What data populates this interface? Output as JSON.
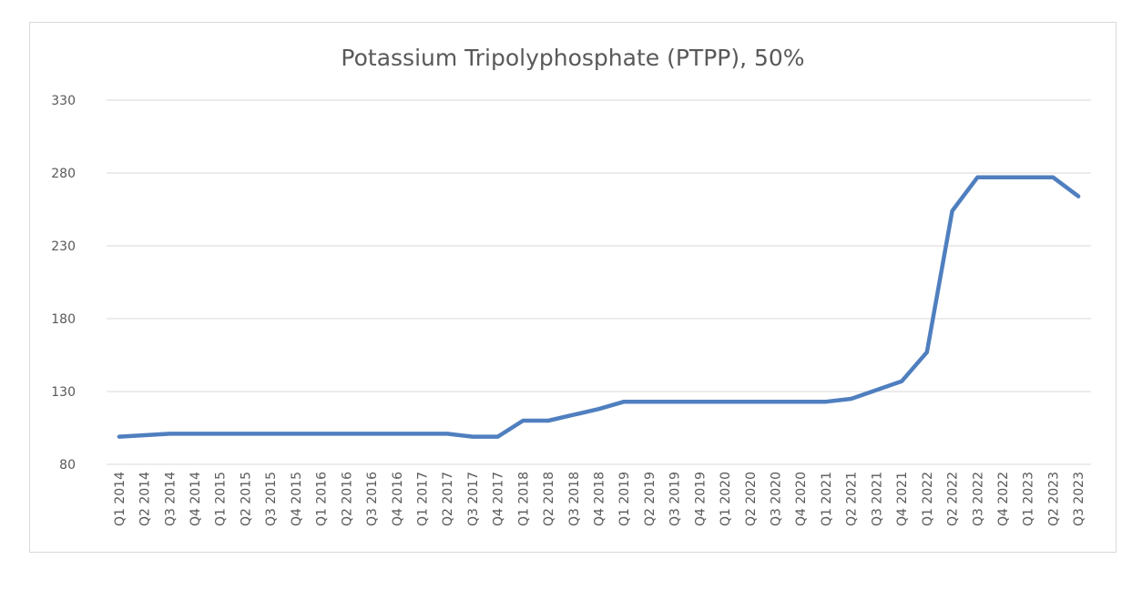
{
  "chart_data": {
    "type": "line",
    "title": "Potassium Tripolyphosphate (PTPP), 50%",
    "xlabel": "",
    "ylabel": "",
    "ylim": [
      80,
      330
    ],
    "yticks": [
      80,
      130,
      180,
      230,
      280,
      330
    ],
    "grid": true,
    "legend": "none",
    "categories": [
      "Q1 2014",
      "Q2 2014",
      "Q3 2014",
      "Q4 2014",
      "Q1 2015",
      "Q2 2015",
      "Q3 2015",
      "Q4 2015",
      "Q1 2016",
      "Q2 2016",
      "Q3 2016",
      "Q4 2016",
      "Q1 2017",
      "Q2 2017",
      "Q3 2017",
      "Q4 2017",
      "Q1 2018",
      "Q2 2018",
      "Q3 2018",
      "Q4 2018",
      "Q1 2019",
      "Q2 2019",
      "Q3 2019",
      "Q4 2019",
      "Q1 2020",
      "Q2 2020",
      "Q3 2020",
      "Q4 2020",
      "Q1 2021",
      "Q2 2021",
      "Q3 2021",
      "Q4 2021",
      "Q1 2022",
      "Q2 2022",
      "Q3 2022",
      "Q4 2022",
      "Q1 2023",
      "Q2 2023",
      "Q3 2023"
    ],
    "series": [
      {
        "color": "#4f7fbf",
        "values": [
          99,
          100,
          101,
          101,
          101,
          101,
          101,
          101,
          101,
          101,
          101,
          101,
          101,
          101,
          99,
          99,
          110,
          110,
          114,
          118,
          123,
          123,
          123,
          123,
          123,
          123,
          123,
          123,
          123,
          125,
          131,
          137,
          157,
          254,
          277,
          277,
          277,
          277,
          264
        ]
      }
    ]
  }
}
